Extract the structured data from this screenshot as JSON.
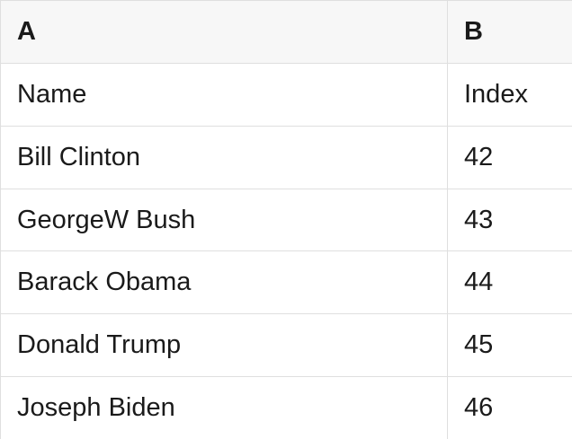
{
  "colors": {
    "header_bg": "#f7f7f7",
    "border": "#dfdfdf",
    "text": "#1a1a1a",
    "cell_bg": "#ffffff"
  },
  "table": {
    "column_headers": [
      "A",
      "B"
    ],
    "rows": [
      {
        "a": "Name",
        "b": "Index"
      },
      {
        "a": "Bill Clinton",
        "b": "42"
      },
      {
        "a": "GeorgeW Bush",
        "b": "43"
      },
      {
        "a": "Barack Obama",
        "b": "44"
      },
      {
        "a": "Donald Trump",
        "b": "45"
      },
      {
        "a": "Joseph Biden",
        "b": "46"
      }
    ]
  }
}
